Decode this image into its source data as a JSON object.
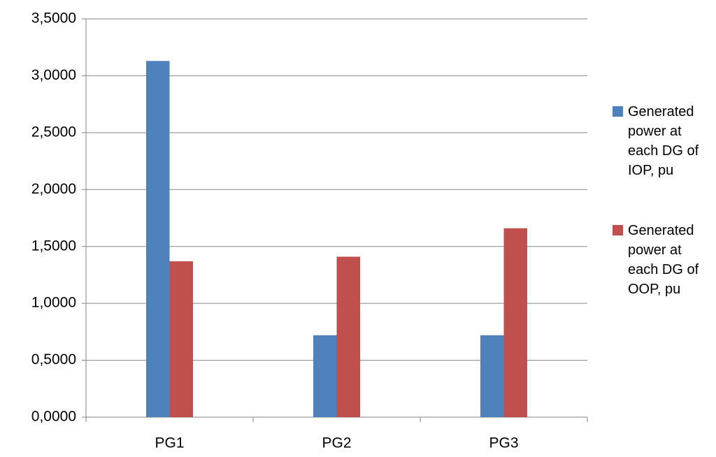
{
  "chart_data": {
    "type": "bar",
    "categories": [
      "PG1",
      "PG2",
      "PG3"
    ],
    "series": [
      {
        "name": "Generated power at each DG of IOP, pu",
        "color": "#4f81bd",
        "values": [
          3.13,
          0.72,
          0.72
        ]
      },
      {
        "name": "Generated power at each DG of OOP, pu",
        "color": "#c0504d",
        "values": [
          1.37,
          1.41,
          1.66
        ]
      }
    ],
    "ylim": [
      0,
      3.5
    ],
    "yticks": [
      {
        "value": 0,
        "label": "0,0000"
      },
      {
        "value": 0.5,
        "label": "0,5000"
      },
      {
        "value": 1,
        "label": "1,0000"
      },
      {
        "value": 1.5,
        "label": "1,5000"
      },
      {
        "value": 2,
        "label": "2,0000"
      },
      {
        "value": 2.5,
        "label": "2,5000"
      },
      {
        "value": 3,
        "label": "3,0000"
      },
      {
        "value": 3.5,
        "label": "3,5000"
      }
    ],
    "grid": true,
    "legend": "right"
  }
}
